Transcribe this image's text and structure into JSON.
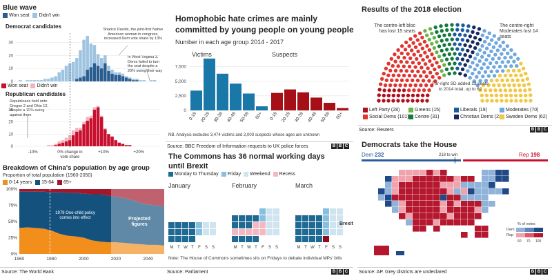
{
  "colors": {
    "won": "#2a5d8f",
    "didnt": "#9fc4e2",
    "rep_won": "#c8102e",
    "rep_didnt": "#f3b2bd",
    "victims": "#1a78a8",
    "suspects": "#a50f15",
    "age0": "#f28e1c",
    "age1": "#14527d",
    "age2": "#a3172b",
    "projected": "rgba(255,255,255,0.32)",
    "cal_weekday": "#1f6a93",
    "cal_friday": "#87bfdf",
    "cal_weekend": "#cfe4ef",
    "cal_recess": "#f4b8c3",
    "cal_brexit": "#8e0a1d",
    "dem": "#2b5b9c",
    "rep": "#c8102e",
    "map_dark_dem": "#204a87",
    "map_light_dem": "#8fb3d9",
    "map_dark_rep": "#b5172e",
    "map_light_rep": "#f1a3ad",
    "map_grey": "#c9c9c9"
  },
  "blue_wave": {
    "title": "Blue wave",
    "legend": [
      {
        "label": "Won seat",
        "color_key": "won"
      },
      {
        "label": "Didn't win",
        "color_key": "didnt"
      }
    ],
    "dem_title": "Democrat candidates",
    "rep_title": "Republican candidates",
    "annotations": {
      "sharice": "Sharice Davids, the joint-first Native American woman in congress, increased Dem vote share by 13%",
      "west_virginia": "In West Virginia 3, Dems failed to turn the seat despite a 20% swing their way",
      "oregon": "Republicans held onto Oregon 2 and Ohio 12, despite a 15% swing against them",
      "zero_change": "0% change in vote share"
    },
    "legend_bottom": [
      {
        "label": "Won seat",
        "color_key": "rep_won"
      },
      {
        "label": "Didn't win",
        "color_key": "rep_didnt"
      }
    ],
    "x_ticks": [
      "-10%",
      "0% change in vote share",
      "+10%",
      "+20%"
    ],
    "y_ticks_dem": [
      "0",
      "10",
      "20",
      "30"
    ],
    "y_ticks_rep": [
      "0",
      "10",
      "20",
      "30"
    ]
  },
  "hate_crimes": {
    "title_line1": "Homophobic hate crimes are mainly",
    "title_line2": "committed by young people on young people",
    "subtitle": "Number in each age group 2014 - 2017",
    "victims_label": "Victims",
    "suspects_label": "Suspects",
    "note": "NB. Analysis excludes 3,474 victims and 2,003 suspects whose ages are unknown",
    "source": "Source: BBC Freedom of Information requests to UK police forces",
    "y_ticks": [
      "0",
      "2,500",
      "5,000",
      "7,500"
    ]
  },
  "election": {
    "title": "Results of the 2018 election",
    "annotations": {
      "left": "The centre-left bloc has lost 15 seats",
      "right": "The centre-right Moderates lost 14 seats",
      "sd": "Far-right SD added 13 seats to 2014 total, up to 62"
    },
    "parties": [
      {
        "label": "Left Party (28)",
        "color": "#b0101d"
      },
      {
        "label": "Greens (15)",
        "color": "#6cb24a"
      },
      {
        "label": "Liberals (19)",
        "color": "#1c5a9e"
      },
      {
        "label": "Moderates (70)",
        "color": "#6fa8dc"
      },
      {
        "label": "Social Dems (101)",
        "color": "#e0352f"
      },
      {
        "label": "Centre (31)",
        "color": "#137a3c"
      },
      {
        "label": "Christian Dems (23)",
        "color": "#16285c"
      },
      {
        "label": "Sweden Dems (62)",
        "color": "#f2c744"
      }
    ],
    "source": "Source: Reuters"
  },
  "china": {
    "title": "Breakdown of China's population by age group",
    "subtitle": "Proportion of total population (1960-2050)",
    "legend": [
      {
        "label": "0-14 years",
        "color_key": "age0"
      },
      {
        "label": "15-64",
        "color_key": "age1"
      },
      {
        "label": "65+",
        "color_key": "age2"
      }
    ],
    "annotation_policy": "1979 One-child policy comes into effect",
    "annotation_projected": "Projected figures",
    "y_ticks": [
      "0%",
      "25%",
      "50%",
      "75%",
      "100%"
    ],
    "x_ticks": [
      "1960",
      "1980",
      "2000",
      "2020",
      "2040"
    ],
    "source": "Source: The World Bank"
  },
  "commons": {
    "title_line1": "The Commons has 36 normal working days",
    "title_line2": "until Brexit",
    "legend": [
      {
        "label": "Monday to Thursday",
        "color_key": "cal_weekday"
      },
      {
        "label": "Friday",
        "color_key": "cal_friday"
      },
      {
        "label": "Weekend",
        "color_key": "cal_weekend"
      },
      {
        "label": "Recess",
        "color_key": "cal_recess"
      }
    ],
    "months": [
      "January",
      "February",
      "March"
    ],
    "day_letters": [
      "M",
      "T",
      "W",
      "T",
      "F",
      "S",
      "S"
    ],
    "brexit_label": "Brexit",
    "note": "Note: The House of Commons sometimes sits on Fridays to debate individual MPs' bills",
    "source": "Source: Parliament"
  },
  "house": {
    "title": "Democrats take the House",
    "dem_label": "Dem",
    "dem_count": "232",
    "win_label": "218 to win",
    "rep_label": "Rep",
    "rep_count": "198",
    "map_legend_title": "% of votes",
    "map_legend_dem": "Dem",
    "map_legend_rep": "Rep",
    "map_legend_ticks": [
      "60",
      "70",
      "100"
    ],
    "source": "Source: AP. Grey districts are undeclared"
  },
  "chart_data": [
    {
      "id": "blue_wave_dem",
      "type": "bar",
      "title": "Blue wave",
      "subtitle": "Democrat candidates",
      "xlabel": "0% change in vote share",
      "x": [
        -14,
        -13,
        -12,
        -11,
        -10,
        -9,
        -8,
        -7,
        -6,
        -5,
        -4,
        -3,
        -2,
        -1,
        0,
        1,
        2,
        3,
        4,
        5,
        6,
        7,
        8,
        9,
        10,
        11,
        12,
        13,
        14,
        15,
        16,
        17,
        18,
        19,
        20,
        21,
        22,
        23,
        24,
        25
      ],
      "series": [
        {
          "name": "Won seat",
          "values": [
            0,
            0,
            0,
            0,
            0,
            0,
            0,
            0,
            0,
            0,
            0,
            0,
            0,
            0,
            0,
            0,
            2,
            3,
            4,
            9,
            11,
            14,
            12,
            10,
            14,
            8,
            6,
            5,
            5,
            4,
            3,
            2,
            1,
            1,
            0,
            0,
            0,
            0,
            0,
            0
          ]
        },
        {
          "name": "Didn't win",
          "values": [
            1,
            0,
            1,
            1,
            1,
            1,
            1,
            2,
            2,
            3,
            4,
            7,
            9,
            12,
            14,
            15,
            16,
            21,
            28,
            26,
            18,
            14,
            9,
            8,
            6,
            4,
            3,
            2,
            2,
            2,
            1,
            1,
            1,
            1,
            1,
            1,
            0,
            1,
            1,
            0
          ]
        }
      ],
      "ylim": [
        0,
        35
      ]
    },
    {
      "id": "blue_wave_rep",
      "type": "bar",
      "subtitle": "Republican candidates",
      "x": [
        -14,
        -13,
        -12,
        -11,
        -10,
        -9,
        -8,
        -7,
        -6,
        -5,
        -4,
        -3,
        -2,
        -1,
        0,
        1,
        2,
        3,
        4,
        5,
        6,
        7,
        8,
        9,
        10,
        11,
        12,
        13,
        14,
        15,
        16,
        17,
        18,
        19,
        20,
        21,
        22,
        23,
        24,
        25
      ],
      "series": [
        {
          "name": "Won seat",
          "values": [
            0,
            0,
            0,
            0,
            0,
            0,
            0,
            0,
            0,
            0,
            1,
            2,
            3,
            4,
            5,
            9,
            12,
            13,
            18,
            21,
            23,
            30,
            32,
            24,
            14,
            10,
            8,
            5,
            3,
            2,
            1,
            1,
            0,
            0,
            0,
            0,
            0,
            0,
            0,
            0
          ]
        },
        {
          "name": "Didn't win",
          "values": [
            0,
            0,
            0,
            0,
            0,
            0,
            0,
            0,
            1,
            1,
            1,
            2,
            2,
            3,
            4,
            4,
            3,
            2,
            2,
            3,
            2,
            2,
            1,
            1,
            1,
            0,
            0,
            0,
            0,
            0,
            0,
            0,
            0,
            0,
            0,
            0,
            0,
            0,
            0,
            0
          ]
        }
      ],
      "ylim": [
        0,
        35
      ]
    },
    {
      "id": "hate_crimes",
      "type": "bar",
      "title": "Homophobic hate crimes are mainly committed by young people on young people",
      "subtitle": "Number in each age group 2014 - 2017",
      "categories": [
        "0-19",
        "20-29",
        "30-39",
        "40-49",
        "50-59",
        "60+"
      ],
      "series": [
        {
          "name": "Victims",
          "values": [
            3400,
            8900,
            6300,
            4600,
            2900,
            700
          ]
        },
        {
          "name": "Suspects",
          "values": [
            3000,
            3600,
            3100,
            2200,
            1300,
            400
          ]
        }
      ],
      "ylim": [
        0,
        9000
      ]
    },
    {
      "id": "election_2018",
      "type": "pie",
      "title": "Results of the 2018 election",
      "categories": [
        "Left Party",
        "Social Dems",
        "Greens",
        "Centre",
        "Liberals",
        "Christian Dems",
        "Moderates",
        "Sweden Dems"
      ],
      "values": [
        28,
        101,
        15,
        31,
        19,
        23,
        70,
        62
      ]
    },
    {
      "id": "china_population",
      "type": "area",
      "title": "Breakdown of China's population by age group",
      "subtitle": "Proportion of total population (1960-2050)",
      "x": [
        1960,
        1965,
        1970,
        1975,
        1980,
        1985,
        1990,
        1995,
        2000,
        2005,
        2010,
        2015,
        2020,
        2025,
        2030,
        2035,
        2040,
        2045,
        2050
      ],
      "series": [
        {
          "name": "0-14 years",
          "values": [
            40,
            41,
            40,
            39,
            36,
            31,
            28,
            27,
            25,
            21,
            19,
            18,
            18,
            17,
            16,
            15,
            14,
            14,
            13
          ]
        },
        {
          "name": "15-64",
          "values": [
            56,
            55,
            56,
            57,
            59,
            64,
            66,
            67,
            68,
            71,
            73,
            72,
            70,
            69,
            67,
            64,
            62,
            61,
            60
          ]
        },
        {
          "name": "65+",
          "values": [
            4,
            4,
            4,
            4,
            5,
            5,
            6,
            6,
            7,
            8,
            8,
            10,
            12,
            14,
            17,
            21,
            24,
            25,
            27
          ]
        }
      ],
      "ylim": [
        0,
        100
      ],
      "annotations": [
        "1979 One-child policy comes into effect",
        "Projected figures"
      ]
    },
    {
      "id": "house_2018",
      "type": "bar",
      "title": "Democrats take the House",
      "categories": [
        "Dem",
        "Rep"
      ],
      "values": [
        232,
        198
      ],
      "threshold": 218
    }
  ]
}
